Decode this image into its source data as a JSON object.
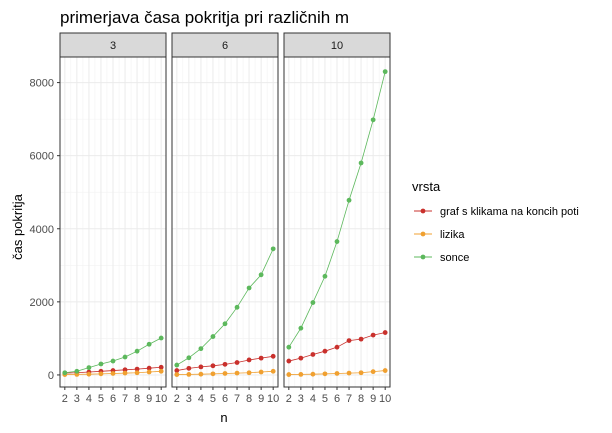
{
  "chart_data": {
    "type": "line",
    "title": "primerjava časa pokritja pri različnih m",
    "xlabel": "n",
    "ylabel": "čas pokritja",
    "facet_title": "",
    "legend_title": "vrsta",
    "legend_position": "right",
    "grid": true,
    "x": [
      2,
      3,
      4,
      5,
      6,
      7,
      8,
      9,
      10
    ],
    "x_ticks": [
      "2",
      "3",
      "4",
      "5",
      "6",
      "7",
      "8",
      "9",
      "10"
    ],
    "ylim": [
      -330,
      8700
    ],
    "y_ticks": [
      0,
      2000,
      4000,
      6000,
      8000
    ],
    "y_tick_labels": [
      "0",
      "2000",
      "4000",
      "6000",
      "8000"
    ],
    "series_meta": [
      {
        "name": "graf s klikama na koncih poti",
        "color": "#c9302c"
      },
      {
        "name": "lizika",
        "color": "#f0a030"
      },
      {
        "name": "sonce",
        "color": "#5cb85c"
      }
    ],
    "panels": [
      {
        "label": "3",
        "series": [
          {
            "name": "graf s klikama na koncih poti",
            "values": [
              50,
              60,
              80,
              100,
              120,
              140,
              160,
              185,
              210
            ]
          },
          {
            "name": "lizika",
            "values": [
              10,
              15,
              20,
              30,
              40,
              50,
              60,
              80,
              100
            ]
          },
          {
            "name": "sonce",
            "values": [
              60,
              100,
              200,
              300,
              380,
              490,
              650,
              840,
              1010
            ]
          }
        ]
      },
      {
        "label": "6",
        "series": [
          {
            "name": "graf s klikama na koncih poti",
            "values": [
              120,
              180,
              220,
              250,
              290,
              340,
              410,
              460,
              510
            ]
          },
          {
            "name": "lizika",
            "values": [
              10,
              15,
              20,
              30,
              40,
              50,
              60,
              80,
              100
            ]
          },
          {
            "name": "sonce",
            "values": [
              270,
              470,
              720,
              1050,
              1400,
              1850,
              2380,
              2740,
              3450
            ]
          }
        ]
      },
      {
        "label": "10",
        "series": [
          {
            "name": "graf s klikama na koncih poti",
            "values": [
              380,
              460,
              560,
              650,
              760,
              940,
              980,
              1090,
              1160
            ]
          },
          {
            "name": "lizika",
            "values": [
              10,
              15,
              20,
              30,
              40,
              50,
              60,
              90,
              120
            ]
          },
          {
            "name": "sonce",
            "values": [
              760,
              1280,
              1980,
              2700,
              3650,
              4780,
              5800,
              6980,
              8300
            ]
          }
        ]
      }
    ]
  }
}
